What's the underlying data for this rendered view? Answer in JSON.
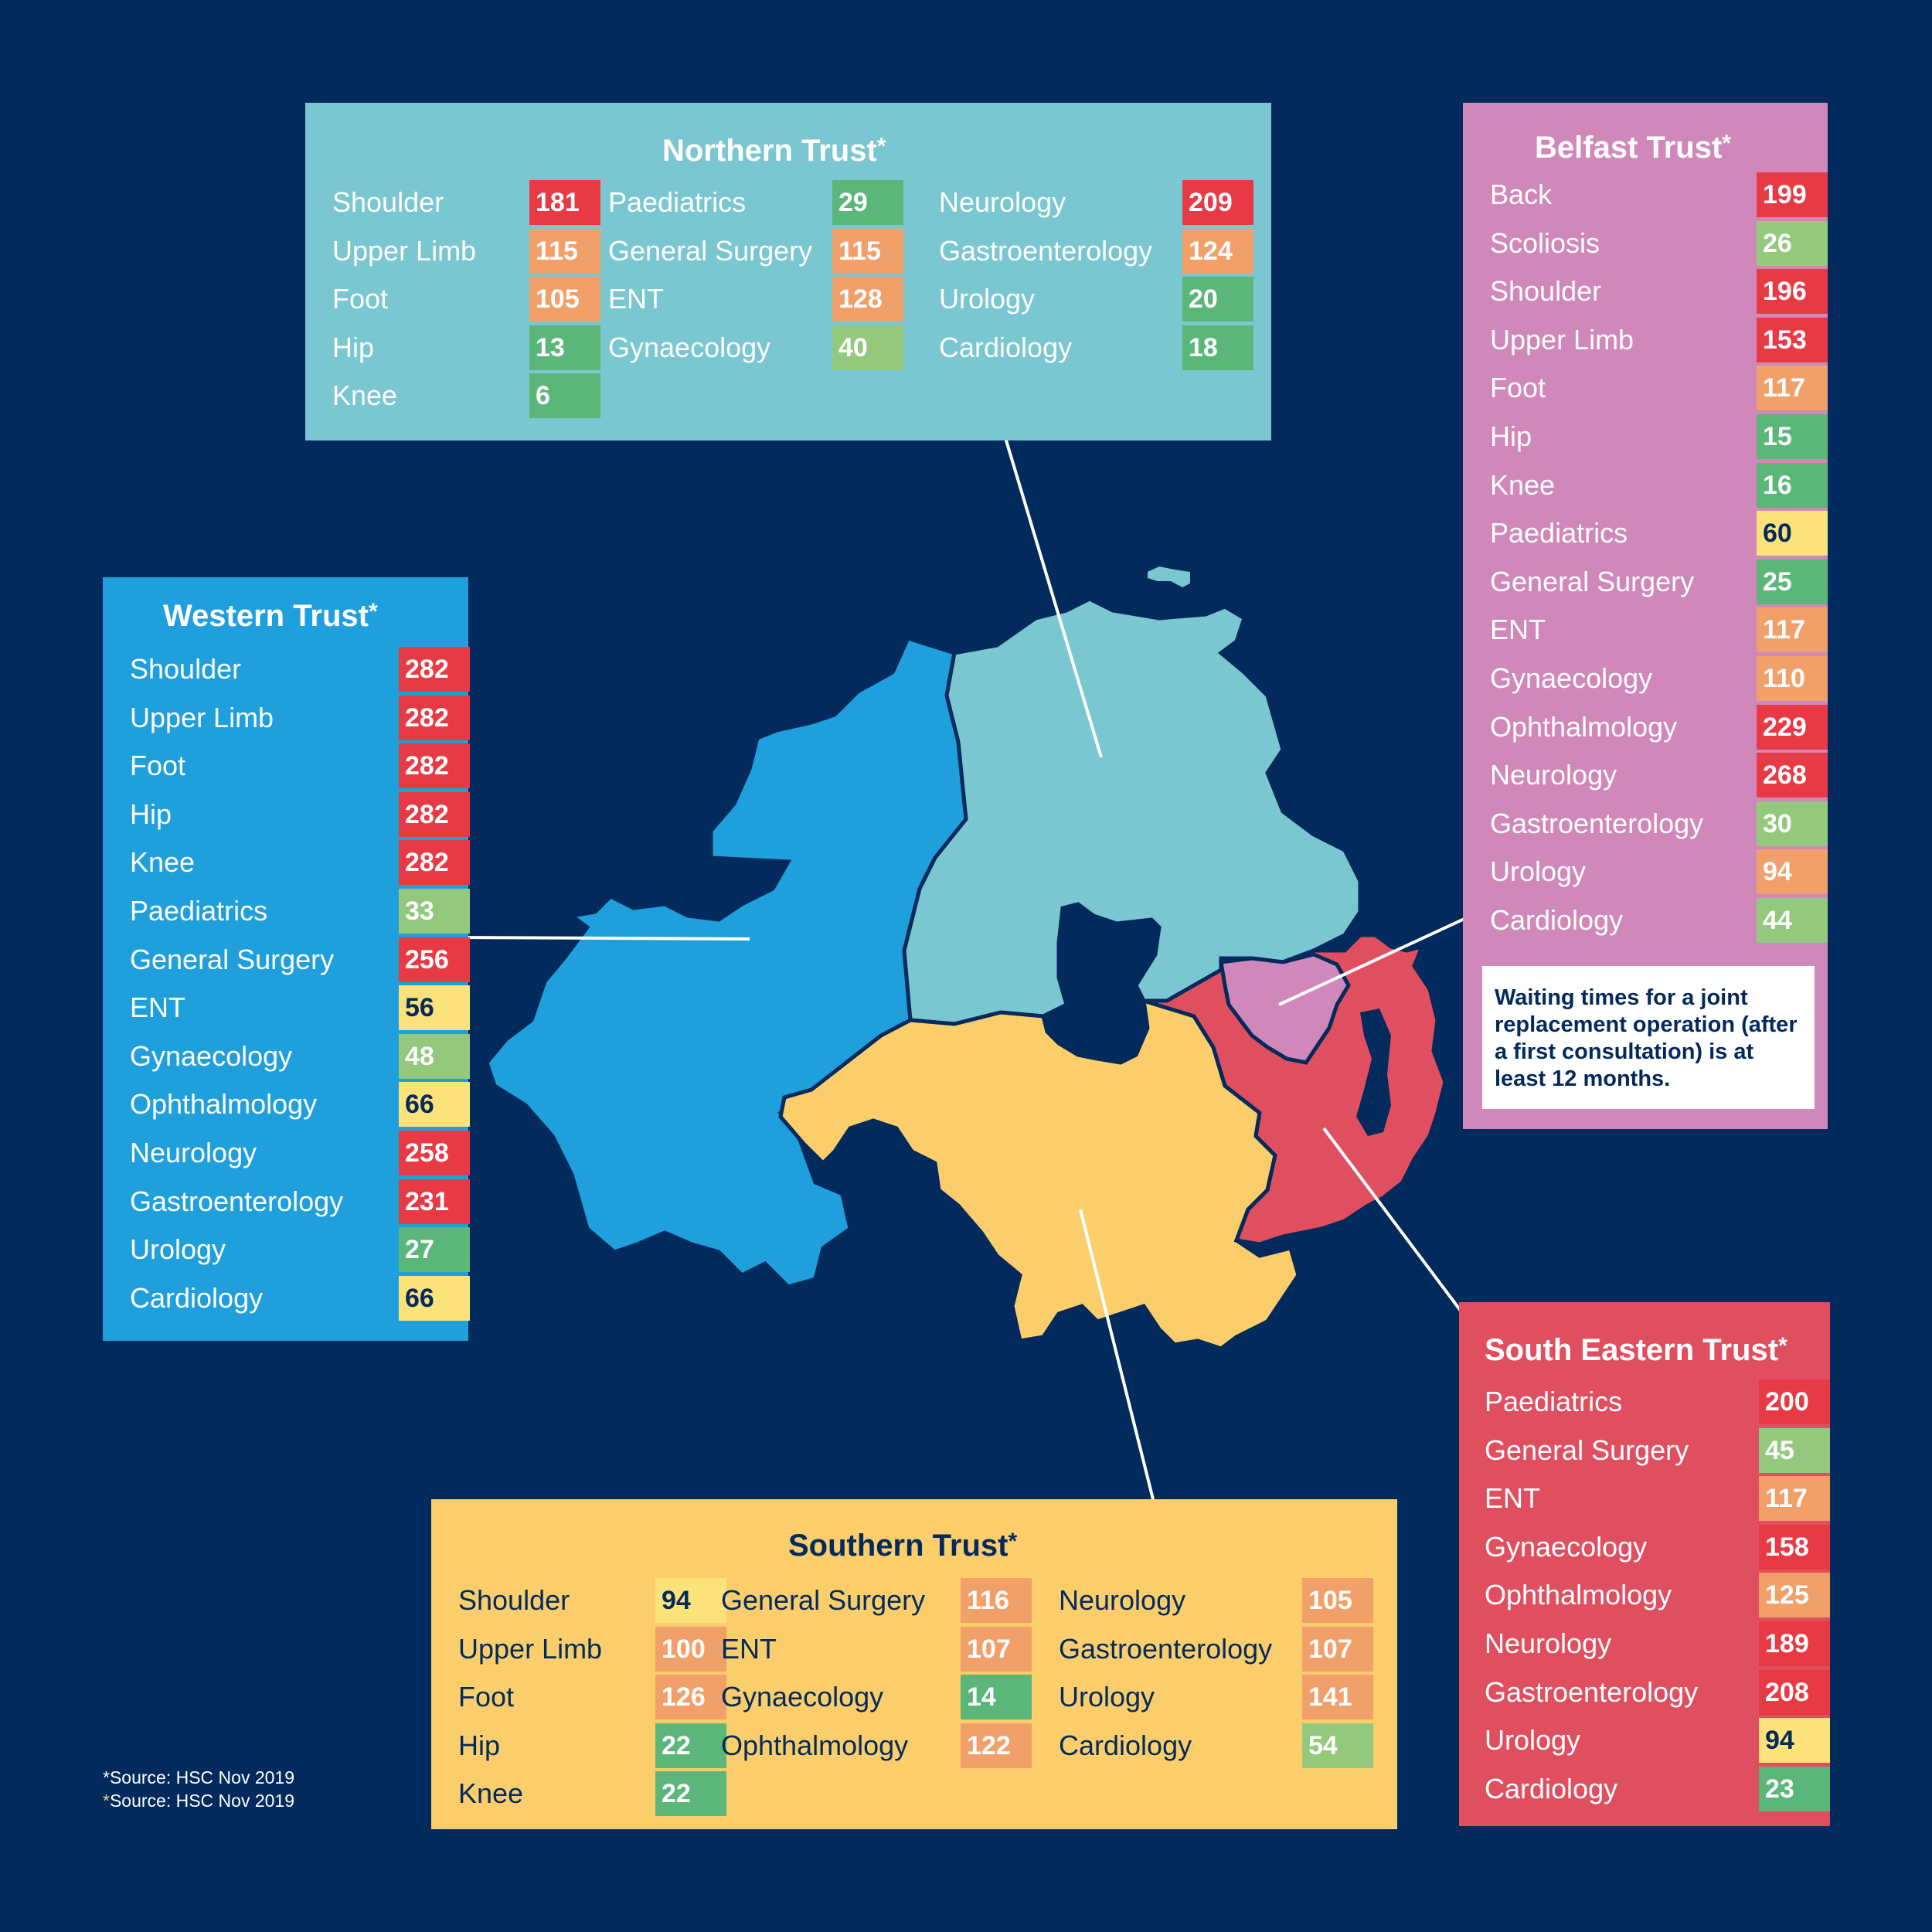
{
  "colors": {
    "background": "#032a5c",
    "status": {
      "red": "#e83a45",
      "orange": "#f2a06a",
      "yellow": "#fbe27a",
      "light_green": "#94c97d",
      "green": "#5bb67a"
    }
  },
  "trusts": {
    "northern": {
      "title": "Northern Trust",
      "asterisk": "*",
      "panel_color": "#7ac6d1",
      "map_color": "#7ac6d1",
      "text_color": "#ffffff",
      "items": [
        {
          "label": "Shoulder",
          "value": "181",
          "status": "red"
        },
        {
          "label": "Upper Limb",
          "value": "115",
          "status": "orange"
        },
        {
          "label": "Foot",
          "value": "105",
          "status": "orange"
        },
        {
          "label": "Hip",
          "value": "13",
          "status": "green"
        },
        {
          "label": "Knee",
          "value": "6",
          "status": "green"
        },
        {
          "label": "Paediatrics",
          "value": "29",
          "status": "green"
        },
        {
          "label": "General Surgery",
          "value": "115",
          "status": "orange"
        },
        {
          "label": "ENT",
          "value": "128",
          "status": "orange"
        },
        {
          "label": "Gynaecology",
          "value": "40",
          "status": "light_green"
        },
        {
          "label": "Neurology",
          "value": "209",
          "status": "red"
        },
        {
          "label": "Gastroenterology",
          "value": "124",
          "status": "orange"
        },
        {
          "label": "Urology",
          "value": "20",
          "status": "green"
        },
        {
          "label": "Cardiology",
          "value": "18",
          "status": "green"
        }
      ]
    },
    "belfast": {
      "title": "Belfast Trust",
      "asterisk": "*",
      "panel_color": "#d088ba",
      "map_color": "#d088ba",
      "text_color": "#ffffff",
      "items": [
        {
          "label": "Back",
          "value": "199",
          "status": "red"
        },
        {
          "label": "Scoliosis",
          "value": "26",
          "status": "light_green"
        },
        {
          "label": "Shoulder",
          "value": "196",
          "status": "red"
        },
        {
          "label": "Upper Limb",
          "value": "153",
          "status": "red"
        },
        {
          "label": "Foot",
          "value": "117",
          "status": "orange"
        },
        {
          "label": "Hip",
          "value": "15",
          "status": "green"
        },
        {
          "label": "Knee",
          "value": "16",
          "status": "green"
        },
        {
          "label": "Paediatrics",
          "value": "60",
          "status": "yellow"
        },
        {
          "label": "General Surgery",
          "value": "25",
          "status": "green"
        },
        {
          "label": "ENT",
          "value": "117",
          "status": "orange"
        },
        {
          "label": "Gynaecology",
          "value": "110",
          "status": "orange"
        },
        {
          "label": "Ophthalmology",
          "value": "229",
          "status": "red"
        },
        {
          "label": "Neurology",
          "value": "268",
          "status": "red"
        },
        {
          "label": "Gastroenterology",
          "value": "30",
          "status": "light_green"
        },
        {
          "label": "Urology",
          "value": "94",
          "status": "orange"
        },
        {
          "label": "Cardiology",
          "value": "44",
          "status": "light_green"
        }
      ],
      "note": "Waiting times for a joint replacement operation (after a first consultation) is at least 12 months."
    },
    "western": {
      "title": "Western Trust",
      "asterisk": "*",
      "panel_color": "#1f9fdc",
      "map_color": "#1f9fdc",
      "text_color": "#ffffff",
      "items": [
        {
          "label": "Shoulder",
          "value": "282",
          "status": "red"
        },
        {
          "label": "Upper Limb",
          "value": "282",
          "status": "red"
        },
        {
          "label": "Foot",
          "value": "282",
          "status": "red"
        },
        {
          "label": "Hip",
          "value": "282",
          "status": "red"
        },
        {
          "label": "Knee",
          "value": "282",
          "status": "red"
        },
        {
          "label": "Paediatrics",
          "value": "33",
          "status": "light_green"
        },
        {
          "label": "General Surgery",
          "value": "256",
          "status": "red"
        },
        {
          "label": "ENT",
          "value": "56",
          "status": "yellow"
        },
        {
          "label": "Gynaecology",
          "value": "48",
          "status": "light_green"
        },
        {
          "label": "Ophthalmology",
          "value": "66",
          "status": "yellow"
        },
        {
          "label": "Neurology",
          "value": "258",
          "status": "red"
        },
        {
          "label": "Gastroenterology",
          "value": "231",
          "status": "red"
        },
        {
          "label": "Urology",
          "value": "27",
          "status": "green"
        },
        {
          "label": "Cardiology",
          "value": "66",
          "status": "yellow"
        }
      ]
    },
    "southern": {
      "title": "Southern Trust",
      "asterisk": "*",
      "panel_color": "#fbcd6b",
      "map_color": "#fbcd6b",
      "text_color": "#032a5c",
      "items": [
        {
          "label": "Shoulder",
          "value": "94",
          "status": "yellow"
        },
        {
          "label": "Upper Limb",
          "value": "100",
          "status": "orange"
        },
        {
          "label": "Foot",
          "value": "126",
          "status": "orange"
        },
        {
          "label": "Hip",
          "value": "22",
          "status": "green"
        },
        {
          "label": "Knee",
          "value": "22",
          "status": "green"
        },
        {
          "label": "General Surgery",
          "value": "116",
          "status": "orange"
        },
        {
          "label": "ENT",
          "value": "107",
          "status": "orange"
        },
        {
          "label": "Gynaecology",
          "value": "14",
          "status": "green"
        },
        {
          "label": "Ophthalmology",
          "value": "122",
          "status": "orange"
        },
        {
          "label": "Neurology",
          "value": "105",
          "status": "orange"
        },
        {
          "label": "Gastroenterology",
          "value": "107",
          "status": "orange"
        },
        {
          "label": "Urology",
          "value": "141",
          "status": "orange"
        },
        {
          "label": "Cardiology",
          "value": "54",
          "status": "light_green"
        }
      ]
    },
    "south_eastern": {
      "title": "South Eastern Trust",
      "asterisk": "*",
      "panel_color": "#e04f5f",
      "map_color": "#e04f5f",
      "text_color": "#ffffff",
      "items": [
        {
          "label": "Paediatrics",
          "value": "200",
          "status": "red"
        },
        {
          "label": "General Surgery",
          "value": "45",
          "status": "light_green"
        },
        {
          "label": "ENT",
          "value": "117",
          "status": "orange"
        },
        {
          "label": "Gynaecology",
          "value": "158",
          "status": "red"
        },
        {
          "label": "Ophthalmology",
          "value": "125",
          "status": "orange"
        },
        {
          "label": "Neurology",
          "value": "189",
          "status": "red"
        },
        {
          "label": "Gastroenterology",
          "value": "208",
          "status": "red"
        },
        {
          "label": "Urology",
          "value": "94",
          "status": "yellow"
        },
        {
          "label": "Cardiology",
          "value": "23",
          "status": "green"
        }
      ]
    }
  },
  "sources": [
    {
      "asterisk": "*",
      "text": "Source: HSC Nov 2019",
      "asterisk_color": "#ffffff"
    },
    {
      "asterisk": "*",
      "text": "Source: HSC Nov 2019",
      "asterisk_color": "#fbcd6b"
    }
  ]
}
